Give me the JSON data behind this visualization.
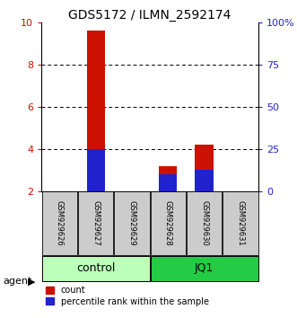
{
  "title": "GDS5172 / ILMN_2592174",
  "samples": [
    "GSM929626",
    "GSM929627",
    "GSM929629",
    "GSM929628",
    "GSM929630",
    "GSM929631"
  ],
  "count_values": [
    2.0,
    9.62,
    2.0,
    3.18,
    4.22,
    2.0
  ],
  "percentile_values": [
    2.0,
    4.0,
    2.0,
    2.78,
    3.0,
    2.0
  ],
  "y_min": 2,
  "y_max": 10,
  "y_ticks_left": [
    2,
    4,
    6,
    8,
    10
  ],
  "y_ticks_right": [
    0,
    25,
    50,
    75,
    100
  ],
  "red_color": "#cc1100",
  "blue_color": "#2222cc",
  "sample_bg": "#cccccc",
  "control_color": "#bbffbb",
  "jq1_color": "#22cc44",
  "title_fontsize": 10,
  "tick_fontsize": 8,
  "sample_fontsize": 6,
  "group_fontsize": 9,
  "legend_fontsize": 7,
  "legend_red": "count",
  "legend_blue": "percentile rank within the sample",
  "bar_width": 0.5
}
